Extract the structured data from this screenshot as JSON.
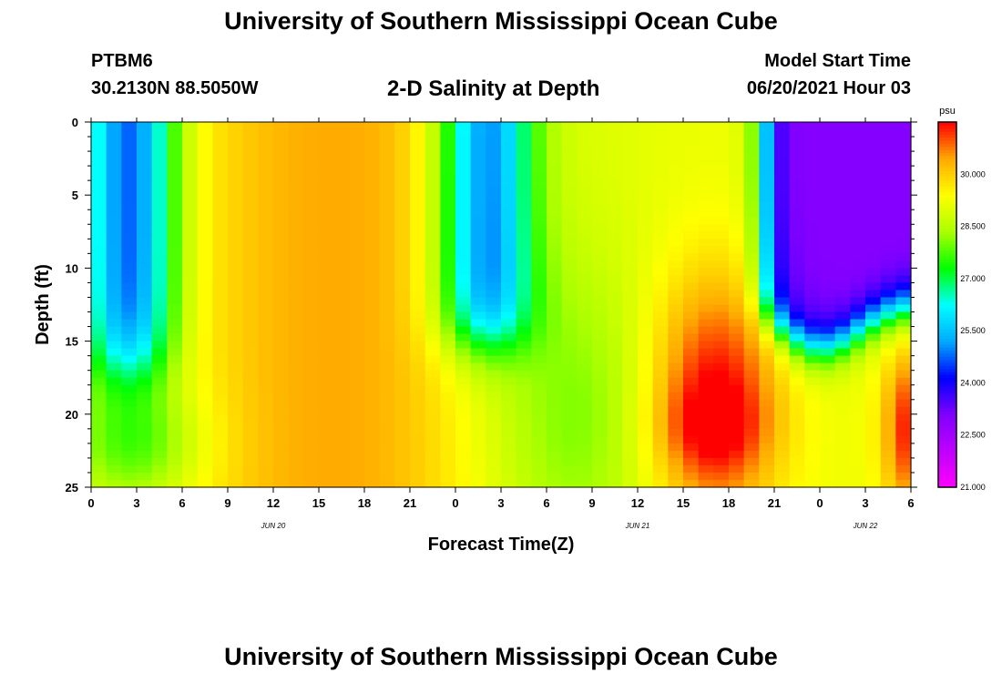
{
  "header": {
    "title": "University of Southern Mississippi Ocean Cube",
    "station": "PTBM6",
    "coordinates": "30.2130N  88.5050W",
    "plot_title": "2-D Salinity at Depth",
    "start_time_label": "Model Start Time",
    "start_time_value": "06/20/2021 Hour 03"
  },
  "footer": {
    "title": "University of Southern Mississippi Ocean Cube"
  },
  "chart_data": {
    "type": "heatmap",
    "title": "2-D Salinity at Depth",
    "xlabel": "Forecast Time(Z)",
    "ylabel": "Depth (ft)",
    "x_unit": "hours since 06/20 00Z",
    "xlim": [
      0,
      54
    ],
    "ylim": [
      0,
      25
    ],
    "y_inverted": true,
    "x_tick_labels": [
      "0",
      "3",
      "6",
      "9",
      "12",
      "15",
      "18",
      "21",
      "0",
      "3",
      "6",
      "9",
      "12",
      "15",
      "18",
      "21",
      "0",
      "3",
      "6"
    ],
    "y_ticks": [
      0,
      5,
      10,
      15,
      20,
      25
    ],
    "date_labels": [
      {
        "text": "JUN 20",
        "hour": 12
      },
      {
        "text": "JUN 21",
        "hour": 36
      },
      {
        "text": "JUN 22",
        "hour": 51
      }
    ],
    "colorbar": {
      "unit": "psu",
      "min": 21.0,
      "max": 31.5,
      "ticks": [
        "21.000",
        "22.500",
        "24.000",
        "25.500",
        "27.000",
        "28.500",
        "30.000"
      ],
      "colors": [
        "#ff00ff",
        "#c000ff",
        "#8000ff",
        "#0000ff",
        "#00aaff",
        "#00ffff",
        "#00ff00",
        "#aaff00",
        "#ffff00",
        "#ffaa00",
        "#ff0000"
      ]
    },
    "grid": false,
    "legend": "colorbar-right",
    "description": "Salinity (psu) vs forecast hour and depth; low salinity (~24-26) at surface near hours 0-4, 24-27 and 44-54; high salinity (~31-32) at depth 15-25 ft near hours 39-43"
  }
}
